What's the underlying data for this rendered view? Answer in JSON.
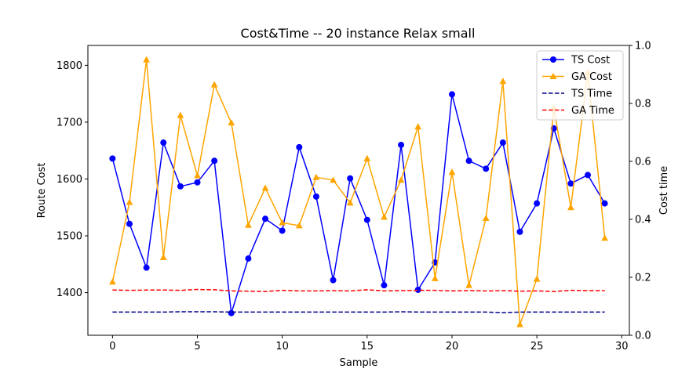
{
  "chart_data": {
    "type": "line",
    "title": "Cost&Time -- 20 instance Relax small",
    "xlabel": "Sample",
    "ylabel": "Route Cost",
    "y2label": "Cost time",
    "xlim": [
      -1.45,
      30.45
    ],
    "ylim": [
      1325,
      1835
    ],
    "y2lim": [
      0.0,
      1.0
    ],
    "xticks": [
      0,
      5,
      10,
      15,
      20,
      25,
      30
    ],
    "yticks": [
      1400,
      1500,
      1600,
      1700,
      1800
    ],
    "y2ticks": [
      0.0,
      0.2,
      0.4,
      0.6,
      0.8,
      1.0
    ],
    "grid": false,
    "legend_position": "top-right",
    "x": [
      0,
      1,
      2,
      3,
      4,
      5,
      6,
      7,
      8,
      9,
      10,
      11,
      12,
      13,
      14,
      15,
      16,
      17,
      18,
      19,
      20,
      21,
      22,
      23,
      24,
      25,
      26,
      27,
      28,
      29
    ],
    "series": [
      {
        "name": "TS Cost",
        "axis": "left",
        "color": "#0000ff",
        "style": "solid",
        "marker": "circle",
        "values": [
          1636,
          1521,
          1444,
          1664,
          1587,
          1594,
          1632,
          1364,
          1460,
          1530,
          1509,
          1656,
          1569,
          1422,
          1601,
          1528,
          1413,
          1660,
          1405,
          1453,
          1749,
          1632,
          1618,
          1664,
          1507,
          1557,
          1689,
          1592,
          1607,
          1557
        ]
      },
      {
        "name": "GA Cost",
        "axis": "left",
        "color": "#ffa500",
        "style": "solid",
        "marker": "triangle",
        "values": [
          1419,
          1559,
          1810,
          1462,
          1712,
          1606,
          1766,
          1699,
          1519,
          1584,
          1523,
          1518,
          1603,
          1598,
          1558,
          1636,
          1533,
          1598,
          1692,
          1425,
          1612,
          1413,
          1531,
          1772,
          1344,
          1424,
          1725,
          1550,
          1787,
          1496
        ]
      },
      {
        "name": "TS Time",
        "axis": "right",
        "color": "#00008b",
        "style": "dashed",
        "marker": "none",
        "values": [
          0.08,
          0.08,
          0.08,
          0.08,
          0.081,
          0.081,
          0.081,
          0.08,
          0.08,
          0.08,
          0.08,
          0.08,
          0.08,
          0.08,
          0.08,
          0.08,
          0.08,
          0.081,
          0.08,
          0.08,
          0.08,
          0.08,
          0.08,
          0.078,
          0.08,
          0.08,
          0.08,
          0.08,
          0.08,
          0.08
        ]
      },
      {
        "name": "GA Time",
        "axis": "right",
        "color": "#ff0000",
        "style": "dashed",
        "marker": "none",
        "values": [
          0.156,
          0.155,
          0.156,
          0.156,
          0.155,
          0.158,
          0.157,
          0.153,
          0.152,
          0.151,
          0.155,
          0.153,
          0.153,
          0.154,
          0.153,
          0.157,
          0.153,
          0.154,
          0.155,
          0.155,
          0.153,
          0.154,
          0.153,
          0.154,
          0.152,
          0.153,
          0.151,
          0.155,
          0.154,
          0.154
        ]
      }
    ]
  }
}
